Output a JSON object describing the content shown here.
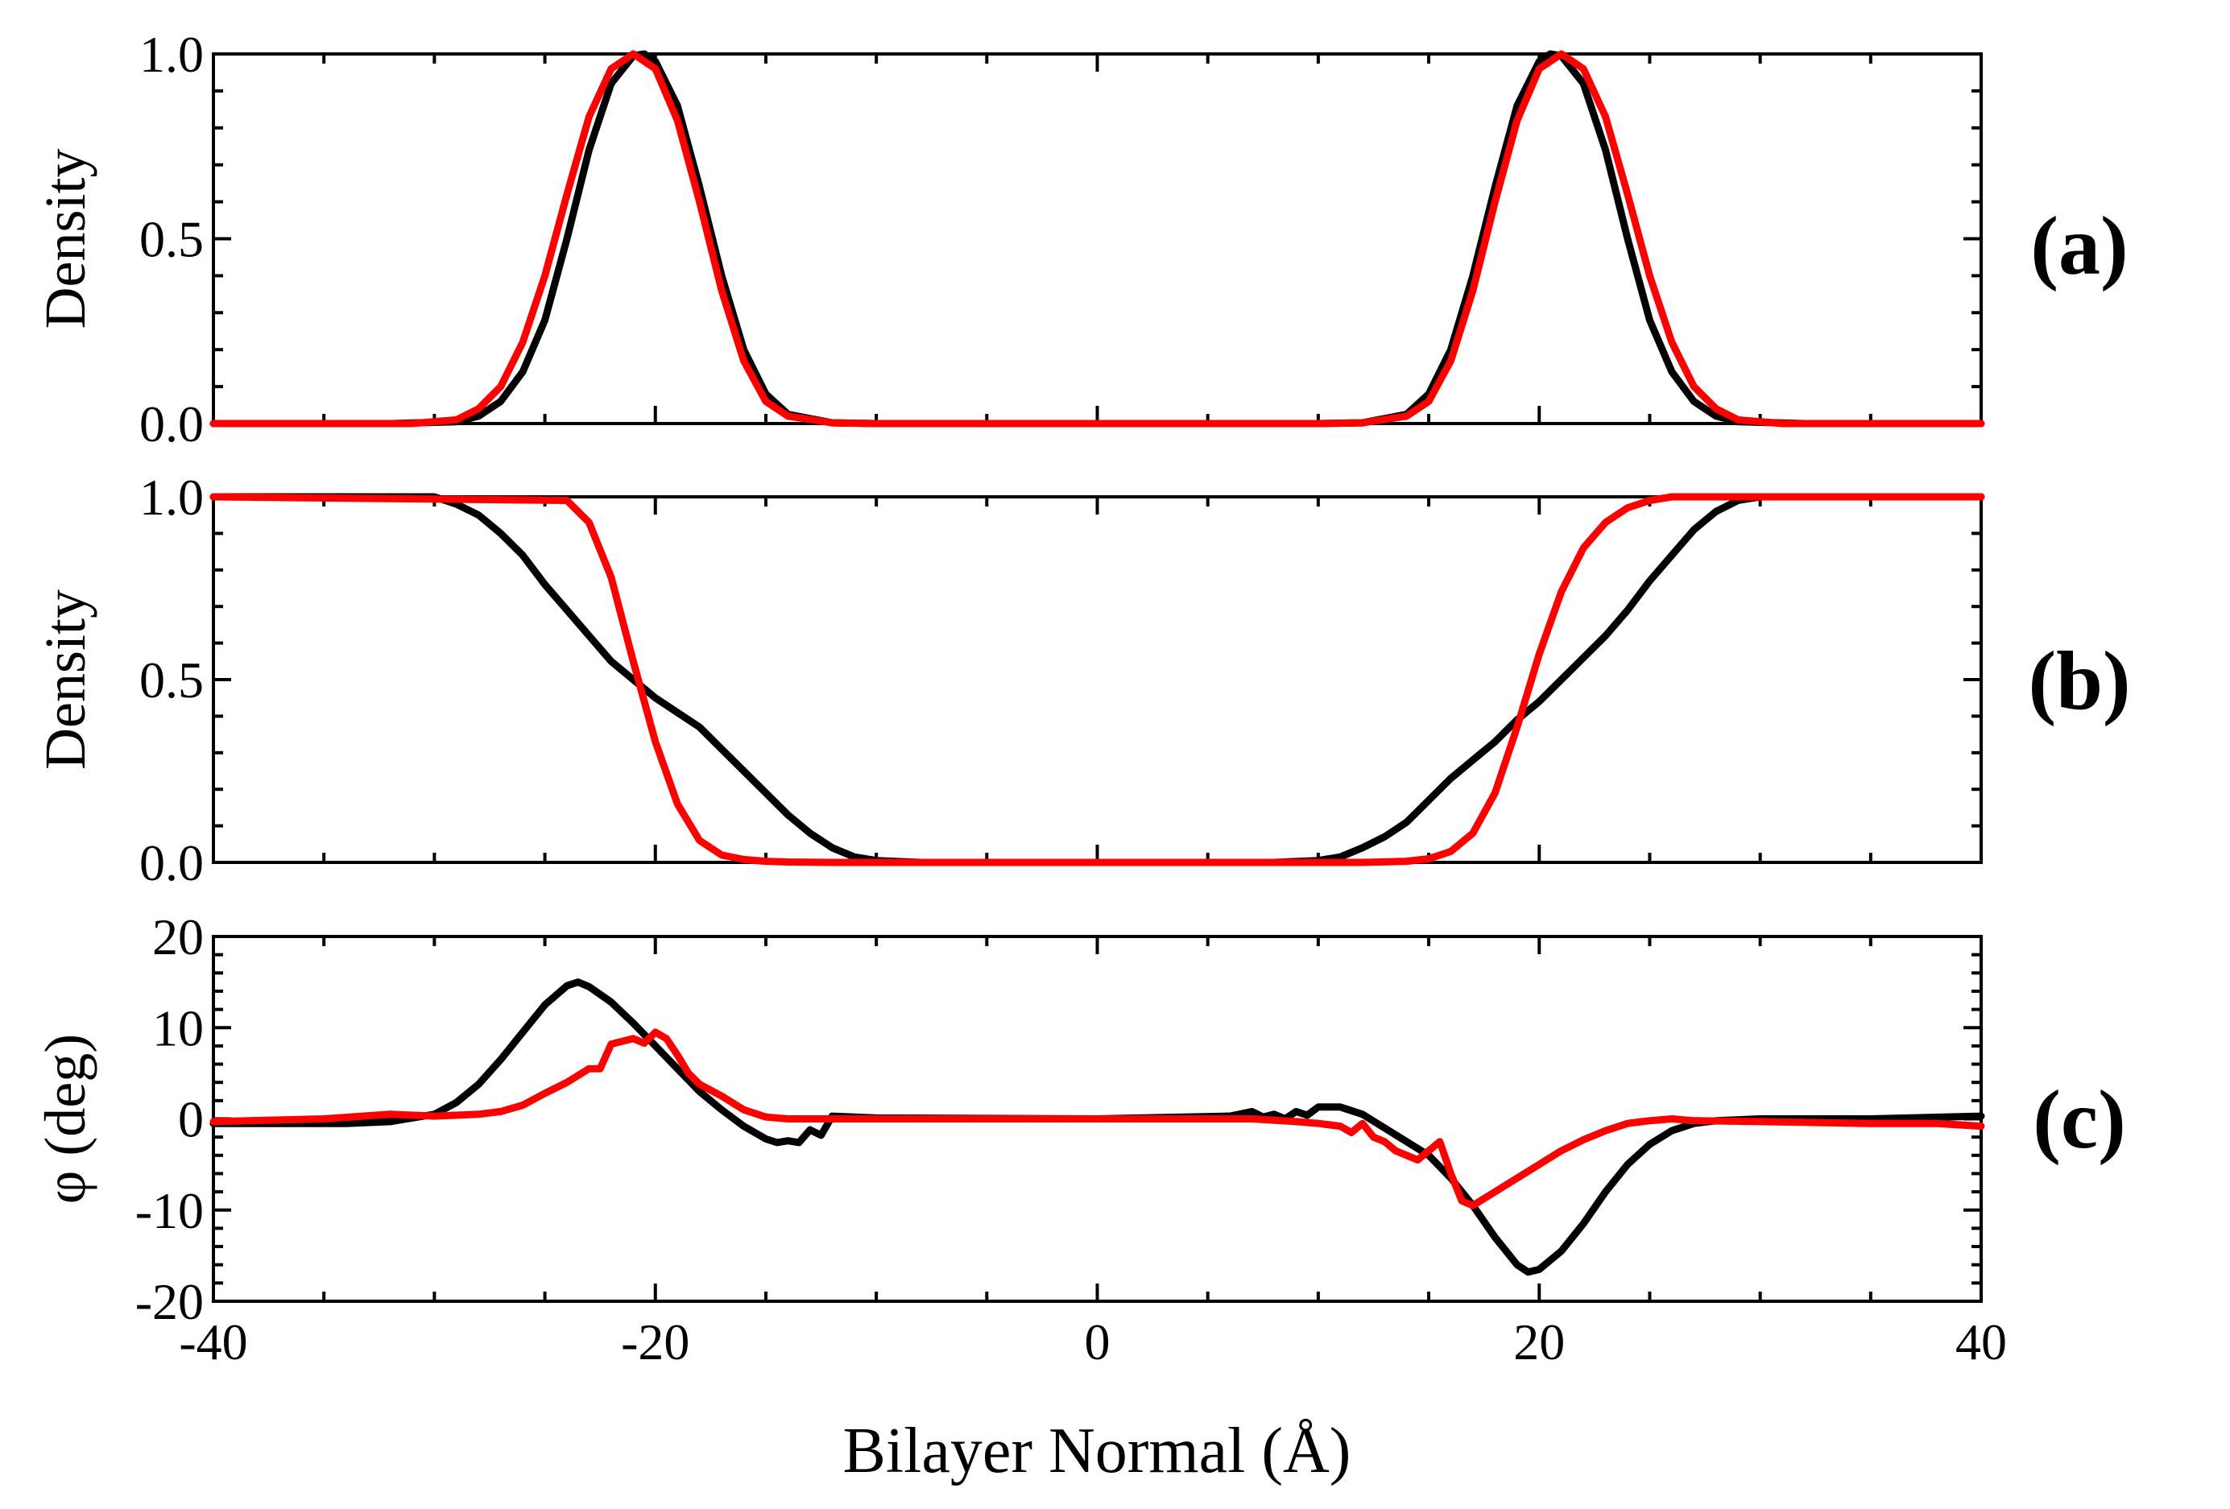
{
  "figure": {
    "xlabel": "Bilayer Normal (Å)",
    "xlim": [
      -40,
      40
    ],
    "x_ticks": [
      "-40",
      "-20",
      "0",
      "20",
      "40"
    ],
    "x_tick_values": [
      -40,
      -20,
      0,
      20,
      40
    ],
    "series_colors": [
      "#000000",
      "#ff0000"
    ]
  },
  "chart_data": [
    {
      "type": "line",
      "panel_label": "(a)",
      "ylabel": "Density",
      "ylim": [
        0,
        1
      ],
      "y_ticks": [
        "0.0",
        "0.5",
        "1.0"
      ],
      "y_tick_values": [
        0,
        0.5,
        1
      ],
      "series": [
        {
          "name": "black",
          "color": "#000000",
          "x": [
            -40,
            -32,
            -29,
            -28,
            -27,
            -26,
            -25,
            -24,
            -23,
            -22,
            -21,
            -20.5,
            -20,
            -19,
            -18,
            -17,
            -16,
            -15,
            -14,
            -12,
            -10,
            0,
            10,
            12,
            14,
            15,
            16,
            17,
            18,
            19,
            20,
            20.5,
            21,
            22,
            23,
            24,
            25,
            26,
            27,
            28,
            29,
            32,
            40
          ],
          "y": [
            0,
            0,
            0.005,
            0.02,
            0.06,
            0.14,
            0.28,
            0.5,
            0.74,
            0.92,
            0.995,
            1.0,
            0.98,
            0.86,
            0.64,
            0.4,
            0.2,
            0.08,
            0.025,
            0.002,
            0,
            0,
            0,
            0.002,
            0.025,
            0.08,
            0.2,
            0.4,
            0.64,
            0.86,
            0.98,
            1.0,
            0.995,
            0.92,
            0.74,
            0.5,
            0.28,
            0.14,
            0.06,
            0.02,
            0.005,
            0,
            0
          ]
        },
        {
          "name": "red",
          "color": "#ff0000",
          "x": [
            -40,
            -31,
            -29,
            -28,
            -27,
            -26,
            -25,
            -24,
            -23,
            -22,
            -21,
            -20,
            -19,
            -18,
            -17,
            -16,
            -15,
            -14,
            -12,
            -10,
            0,
            10,
            12,
            14,
            15,
            16,
            17,
            18,
            19,
            20,
            21,
            22,
            23,
            24,
            25,
            26,
            27,
            28,
            29,
            31,
            40
          ],
          "y": [
            0,
            0,
            0.01,
            0.04,
            0.1,
            0.22,
            0.4,
            0.62,
            0.83,
            0.96,
            1.0,
            0.96,
            0.82,
            0.6,
            0.36,
            0.17,
            0.06,
            0.02,
            0.002,
            0,
            0,
            0,
            0.002,
            0.02,
            0.06,
            0.17,
            0.36,
            0.6,
            0.82,
            0.96,
            1.0,
            0.96,
            0.83,
            0.62,
            0.4,
            0.22,
            0.1,
            0.04,
            0.01,
            0,
            0
          ]
        }
      ]
    },
    {
      "type": "line",
      "panel_label": "(b)",
      "ylabel": "Density",
      "ylim": [
        0,
        1
      ],
      "y_ticks": [
        "0.0",
        "0.5",
        "1.0"
      ],
      "y_tick_values": [
        0,
        0.5,
        1
      ],
      "series": [
        {
          "name": "black",
          "color": "#000000",
          "x": [
            -40,
            -30,
            -29,
            -28,
            -27,
            -26,
            -25,
            -24,
            -23,
            -22,
            -21,
            -20,
            -19,
            -18,
            -17,
            -16,
            -15,
            -14,
            -13,
            -12,
            -11,
            -10,
            -8,
            0,
            8,
            10,
            11,
            12,
            13,
            14,
            15,
            16,
            17,
            18,
            19,
            20,
            21,
            22,
            23,
            24,
            25,
            26,
            27,
            28,
            29,
            30,
            40
          ],
          "y": [
            1.0,
            1.0,
            0.98,
            0.95,
            0.9,
            0.84,
            0.76,
            0.69,
            0.62,
            0.55,
            0.5,
            0.45,
            0.41,
            0.37,
            0.31,
            0.25,
            0.19,
            0.13,
            0.08,
            0.04,
            0.015,
            0.005,
            0,
            0,
            0,
            0.005,
            0.015,
            0.04,
            0.07,
            0.11,
            0.17,
            0.23,
            0.28,
            0.33,
            0.39,
            0.44,
            0.5,
            0.56,
            0.62,
            0.69,
            0.77,
            0.84,
            0.91,
            0.96,
            0.99,
            1.0,
            1.0
          ]
        },
        {
          "name": "red",
          "color": "#ff0000",
          "x": [
            -40,
            -24,
            -23,
            -22,
            -21,
            -20,
            -19,
            -18,
            -17,
            -16,
            -15,
            -14,
            -12,
            0,
            12,
            14,
            15,
            16,
            17,
            18,
            19,
            20,
            21,
            22,
            23,
            24,
            25,
            26,
            40
          ],
          "y": [
            1.0,
            0.99,
            0.93,
            0.78,
            0.55,
            0.33,
            0.16,
            0.06,
            0.02,
            0.008,
            0.003,
            0.001,
            0,
            0,
            0,
            0.003,
            0.01,
            0.03,
            0.08,
            0.19,
            0.37,
            0.57,
            0.74,
            0.86,
            0.93,
            0.97,
            0.99,
            1.0,
            1.0
          ]
        }
      ]
    },
    {
      "type": "line",
      "panel_label": "(c)",
      "ylabel": "φ (deg)",
      "ylim": [
        -20,
        20
      ],
      "y_ticks": [
        "-20",
        "-10",
        "0",
        "10",
        "20"
      ],
      "y_tick_values": [
        -20,
        -10,
        0,
        10,
        20
      ],
      "series": [
        {
          "name": "black",
          "color": "#000000",
          "x": [
            -40,
            -34,
            -32,
            -30,
            -29,
            -28,
            -27,
            -26,
            -25,
            -24,
            -23.5,
            -23,
            -22,
            -21,
            -20,
            -19,
            -18,
            -17,
            -16,
            -15,
            -14.5,
            -14,
            -13.5,
            -13,
            -12.5,
            -12,
            -11,
            -10,
            0,
            6,
            7,
            7.5,
            8,
            8.5,
            9,
            9.5,
            10,
            11,
            12,
            13,
            14,
            15,
            16,
            17,
            18,
            19,
            19.5,
            20,
            21,
            22,
            23,
            24,
            25,
            26,
            27,
            28,
            30,
            35,
            40
          ],
          "y": [
            -0.5,
            -0.5,
            -0.3,
            0.5,
            1.8,
            3.8,
            6.5,
            9.5,
            12.5,
            14.6,
            15.0,
            14.5,
            12.8,
            10.5,
            8.0,
            5.5,
            3.0,
            1.0,
            -0.8,
            -2.2,
            -2.6,
            -2.4,
            -2.6,
            -1.2,
            -1.8,
            0.3,
            0.2,
            0.1,
            0,
            0.3,
            0.8,
            0.2,
            0.5,
            0,
            0.8,
            0.4,
            1.3,
            1.3,
            0.5,
            -1.0,
            -2.5,
            -4.0,
            -6.5,
            -9.5,
            -13.0,
            -16.0,
            -16.8,
            -16.5,
            -14.5,
            -11.5,
            -8.0,
            -5.0,
            -2.8,
            -1.3,
            -0.5,
            -0.2,
            0,
            0,
            0.3
          ]
        },
        {
          "name": "red",
          "color": "#ff0000",
          "x": [
            -40,
            -35,
            -32,
            -30,
            -28,
            -27,
            -26,
            -25,
            -24,
            -23,
            -22.5,
            -22,
            -21,
            -20.5,
            -20,
            -19.5,
            -19,
            -18.5,
            -18,
            -17,
            -16,
            -15,
            -14,
            -12,
            -10,
            0,
            7,
            9,
            10,
            11,
            11.5,
            12,
            12.5,
            13,
            13.5,
            14,
            14.5,
            15,
            15.5,
            16,
            16.5,
            17,
            18,
            19,
            20,
            21,
            22,
            23,
            24,
            25,
            26,
            27,
            30,
            35,
            38,
            40
          ],
          "y": [
            -0.3,
            0,
            0.5,
            0.3,
            0.5,
            0.8,
            1.5,
            2.8,
            4.0,
            5.5,
            5.5,
            8.2,
            8.8,
            8.3,
            9.5,
            8.8,
            7.0,
            5.0,
            3.8,
            2.5,
            1.0,
            0.2,
            0,
            0,
            0,
            0,
            0,
            -0.3,
            -0.5,
            -0.8,
            -1.5,
            -0.5,
            -2.0,
            -2.5,
            -3.5,
            -4.0,
            -4.5,
            -3.5,
            -2.5,
            -6.0,
            -9.0,
            -9.5,
            -8.0,
            -6.5,
            -5.0,
            -3.5,
            -2.3,
            -1.3,
            -0.5,
            -0.2,
            0,
            -0.2,
            -0.3,
            -0.5,
            -0.5,
            -0.8
          ]
        }
      ]
    }
  ]
}
